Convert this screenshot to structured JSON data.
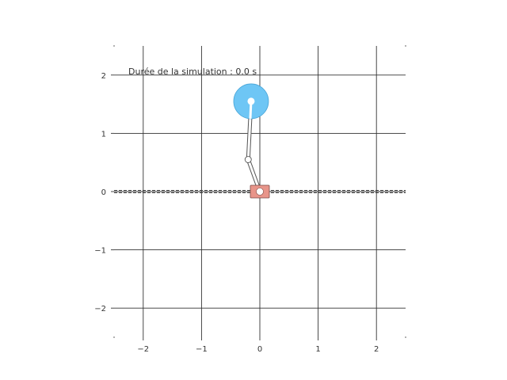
{
  "chart_data": {
    "type": "scatter",
    "title": "",
    "xlabel": "",
    "ylabel": "",
    "xlim": [
      -2.5,
      2.5
    ],
    "ylim": [
      -2.5,
      2.5
    ],
    "grid": true,
    "x_ticks": [
      -2,
      -1,
      0,
      1,
      2
    ],
    "y_ticks": [
      -2,
      -1,
      0,
      1,
      2
    ],
    "x_tick_labels": [
      "−2",
      "−1",
      "0",
      "1",
      "2"
    ],
    "y_tick_labels": [
      "−2",
      "−1",
      "0",
      "1",
      "2"
    ],
    "annotation": "Durée de la simulation : 0.0 s",
    "annotation_position": "top-left",
    "track": {
      "y": 0
    },
    "cart": {
      "x": 0.0,
      "y": 0.0,
      "color": "#e8958a"
    },
    "pendulum": [
      {
        "from": [
          0.0,
          0.0
        ],
        "to": [
          -0.2,
          0.55
        ]
      },
      {
        "from": [
          -0.2,
          0.55
        ],
        "to": [
          -0.15,
          1.55
        ]
      }
    ],
    "joint": {
      "x": -0.2,
      "y": 0.55
    },
    "bob": {
      "x": -0.15,
      "y": 1.55,
      "color": "#6ec6f5"
    }
  }
}
